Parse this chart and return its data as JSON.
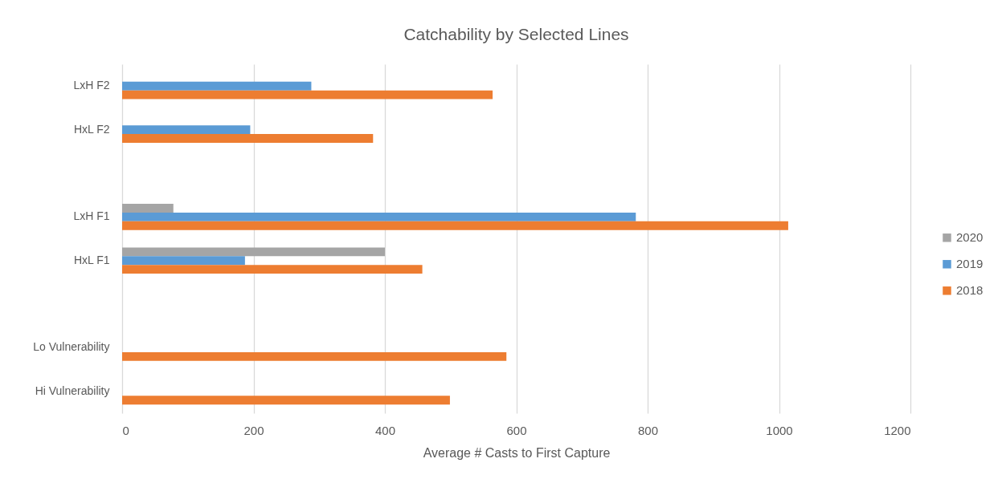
{
  "chart_data": {
    "type": "bar",
    "orientation": "horizontal",
    "title": "Catchability by Selected Lines",
    "xlabel": "Average # Casts to First Capture",
    "categories": [
      "LxH F2",
      "HxL F2",
      null,
      "LxH F1",
      "HxL F1",
      null,
      "Lo Vulnerability",
      "Hi Vulnerability"
    ],
    "series": [
      {
        "name": "2020",
        "color": "#a5a5a5",
        "values": [
          null,
          null,
          null,
          78,
          400,
          null,
          null,
          null
        ]
      },
      {
        "name": "2019",
        "color": "#5b9bd5",
        "values": [
          288,
          195,
          null,
          782,
          187,
          null,
          null,
          null
        ]
      },
      {
        "name": "2018",
        "color": "#ed7d31",
        "values": [
          564,
          382,
          null,
          1014,
          457,
          null,
          585,
          499
        ]
      }
    ],
    "xlim": [
      0,
      1200
    ],
    "xticks": [
      0,
      200,
      400,
      600,
      800,
      1000,
      1200
    ],
    "grid": "x",
    "legend": "right"
  }
}
